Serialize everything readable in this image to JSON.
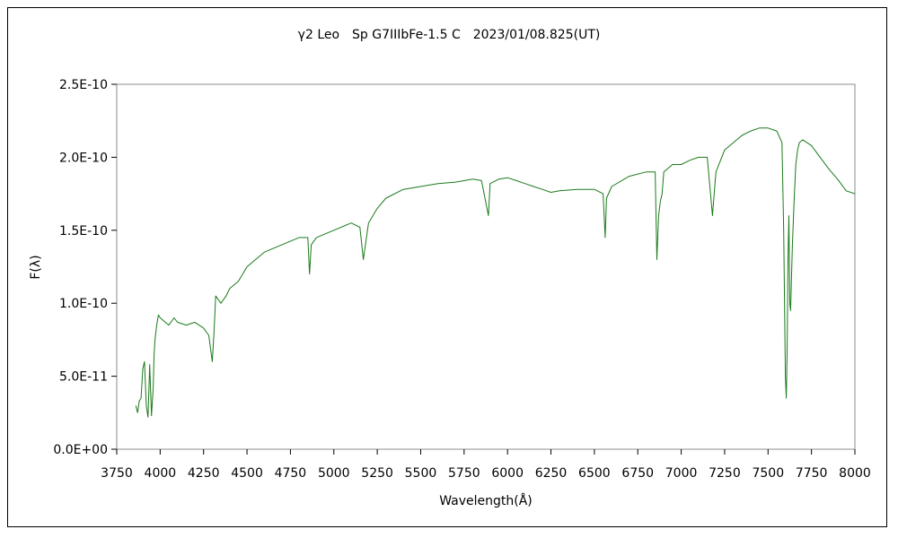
{
  "chart_data": {
    "type": "line",
    "title": "γ2 Leo　Sp G7IIIbFe-1.5 C　2023/01/08.825(UT)",
    "xlabel": "Wavelength(Å)",
    "ylabel": "F(λ)",
    "xlim": [
      3750,
      8000
    ],
    "ylim": [
      0,
      2.5e-10
    ],
    "x_ticks": [
      3750,
      4000,
      4250,
      4500,
      4750,
      5000,
      5250,
      5500,
      5750,
      6000,
      6250,
      6500,
      6750,
      7000,
      7250,
      7500,
      7750,
      8000
    ],
    "x_tick_labels": [
      "3750",
      "4000",
      "4250",
      "4500",
      "4750",
      "5000",
      "5250",
      "5500",
      "5750",
      "6000",
      "6250",
      "6500",
      "6750",
      "7000",
      "7250",
      "7500",
      "7750",
      "8000"
    ],
    "y_ticks": [
      0,
      5e-11,
      1e-10,
      1.5e-10,
      2e-10,
      2.5e-10
    ],
    "y_tick_labels": [
      "0.0E+00",
      "5.0E-11",
      "1.0E-10",
      "1.5E-10",
      "2.0E-10",
      "2.5E-10"
    ],
    "grid": false,
    "legend": "none",
    "colors": {
      "series": "#1a7a1a",
      "frame": "#000000"
    },
    "series": [
      {
        "x": [
          3860,
          3870,
          3880,
          3890,
          3900,
          3910,
          3920,
          3930,
          3935,
          3940,
          3950,
          3960,
          3965,
          3970,
          3980,
          3990,
          4000,
          4020,
          4050,
          4080,
          4100,
          4150,
          4200,
          4250,
          4280,
          4300,
          4310,
          4320,
          4350,
          4380,
          4400,
          4450,
          4500,
          4550,
          4600,
          4700,
          4800,
          4850,
          4860,
          4870,
          4900,
          5000,
          5100,
          5150,
          5170,
          5200,
          5250,
          5300,
          5400,
          5500,
          5600,
          5700,
          5800,
          5850,
          5890,
          5900,
          5950,
          6000,
          6050,
          6100,
          6150,
          6200,
          6250,
          6300,
          6400,
          6500,
          6550,
          6562,
          6570,
          6600,
          6700,
          6800,
          6850,
          6860,
          6870,
          6880,
          6890,
          6900,
          6950,
          7000,
          7050,
          7100,
          7150,
          7180,
          7190,
          7200,
          7250,
          7300,
          7350,
          7400,
          7450,
          7500,
          7550,
          7580,
          7590,
          7600,
          7605,
          7610,
          7615,
          7620,
          7625,
          7630,
          7640,
          7650,
          7660,
          7670,
          7680,
          7700,
          7750,
          7800,
          7850,
          7900,
          7950,
          8000
        ],
        "y": [
          3e-11,
          2.5e-11,
          3.3e-11,
          3.5e-11,
          5.5e-11,
          6e-11,
          3e-11,
          2.2e-11,
          4e-11,
          5.8e-11,
          2.3e-11,
          4.2e-11,
          6.5e-11,
          7.5e-11,
          8.5e-11,
          9.2e-11,
          9e-11,
          8.8e-11,
          8.5e-11,
          9e-11,
          8.7e-11,
          8.5e-11,
          8.7e-11,
          8.3e-11,
          7.8e-11,
          6e-11,
          8e-11,
          1.05e-10,
          1e-10,
          1.05e-10,
          1.1e-10,
          1.15e-10,
          1.25e-10,
          1.3e-10,
          1.35e-10,
          1.4e-10,
          1.45e-10,
          1.45e-10,
          1.2e-10,
          1.4e-10,
          1.45e-10,
          1.5e-10,
          1.55e-10,
          1.52e-10,
          1.3e-10,
          1.55e-10,
          1.65e-10,
          1.72e-10,
          1.78e-10,
          1.8e-10,
          1.82e-10,
          1.83e-10,
          1.85e-10,
          1.84e-10,
          1.6e-10,
          1.82e-10,
          1.85e-10,
          1.86e-10,
          1.84e-10,
          1.82e-10,
          1.8e-10,
          1.78e-10,
          1.76e-10,
          1.77e-10,
          1.78e-10,
          1.78e-10,
          1.75e-10,
          1.45e-10,
          1.72e-10,
          1.8e-10,
          1.87e-10,
          1.9e-10,
          1.9e-10,
          1.3e-10,
          1.6e-10,
          1.7e-10,
          1.75e-10,
          1.9e-10,
          1.95e-10,
          1.95e-10,
          1.98e-10,
          2e-10,
          2e-10,
          1.6e-10,
          1.75e-10,
          1.9e-10,
          2.05e-10,
          2.1e-10,
          2.15e-10,
          2.18e-10,
          2.2e-10,
          2.2e-10,
          2.18e-10,
          2.1e-10,
          1.5e-10,
          5e-11,
          3.5e-11,
          7e-11,
          1.3e-10,
          1.6e-10,
          1e-10,
          9.5e-11,
          1.4e-10,
          1.7e-10,
          1.95e-10,
          2.05e-10,
          2.1e-10,
          2.12e-10,
          2.08e-10,
          2e-10,
          1.92e-10,
          1.85e-10,
          1.77e-10,
          1.75e-10
        ]
      }
    ]
  }
}
